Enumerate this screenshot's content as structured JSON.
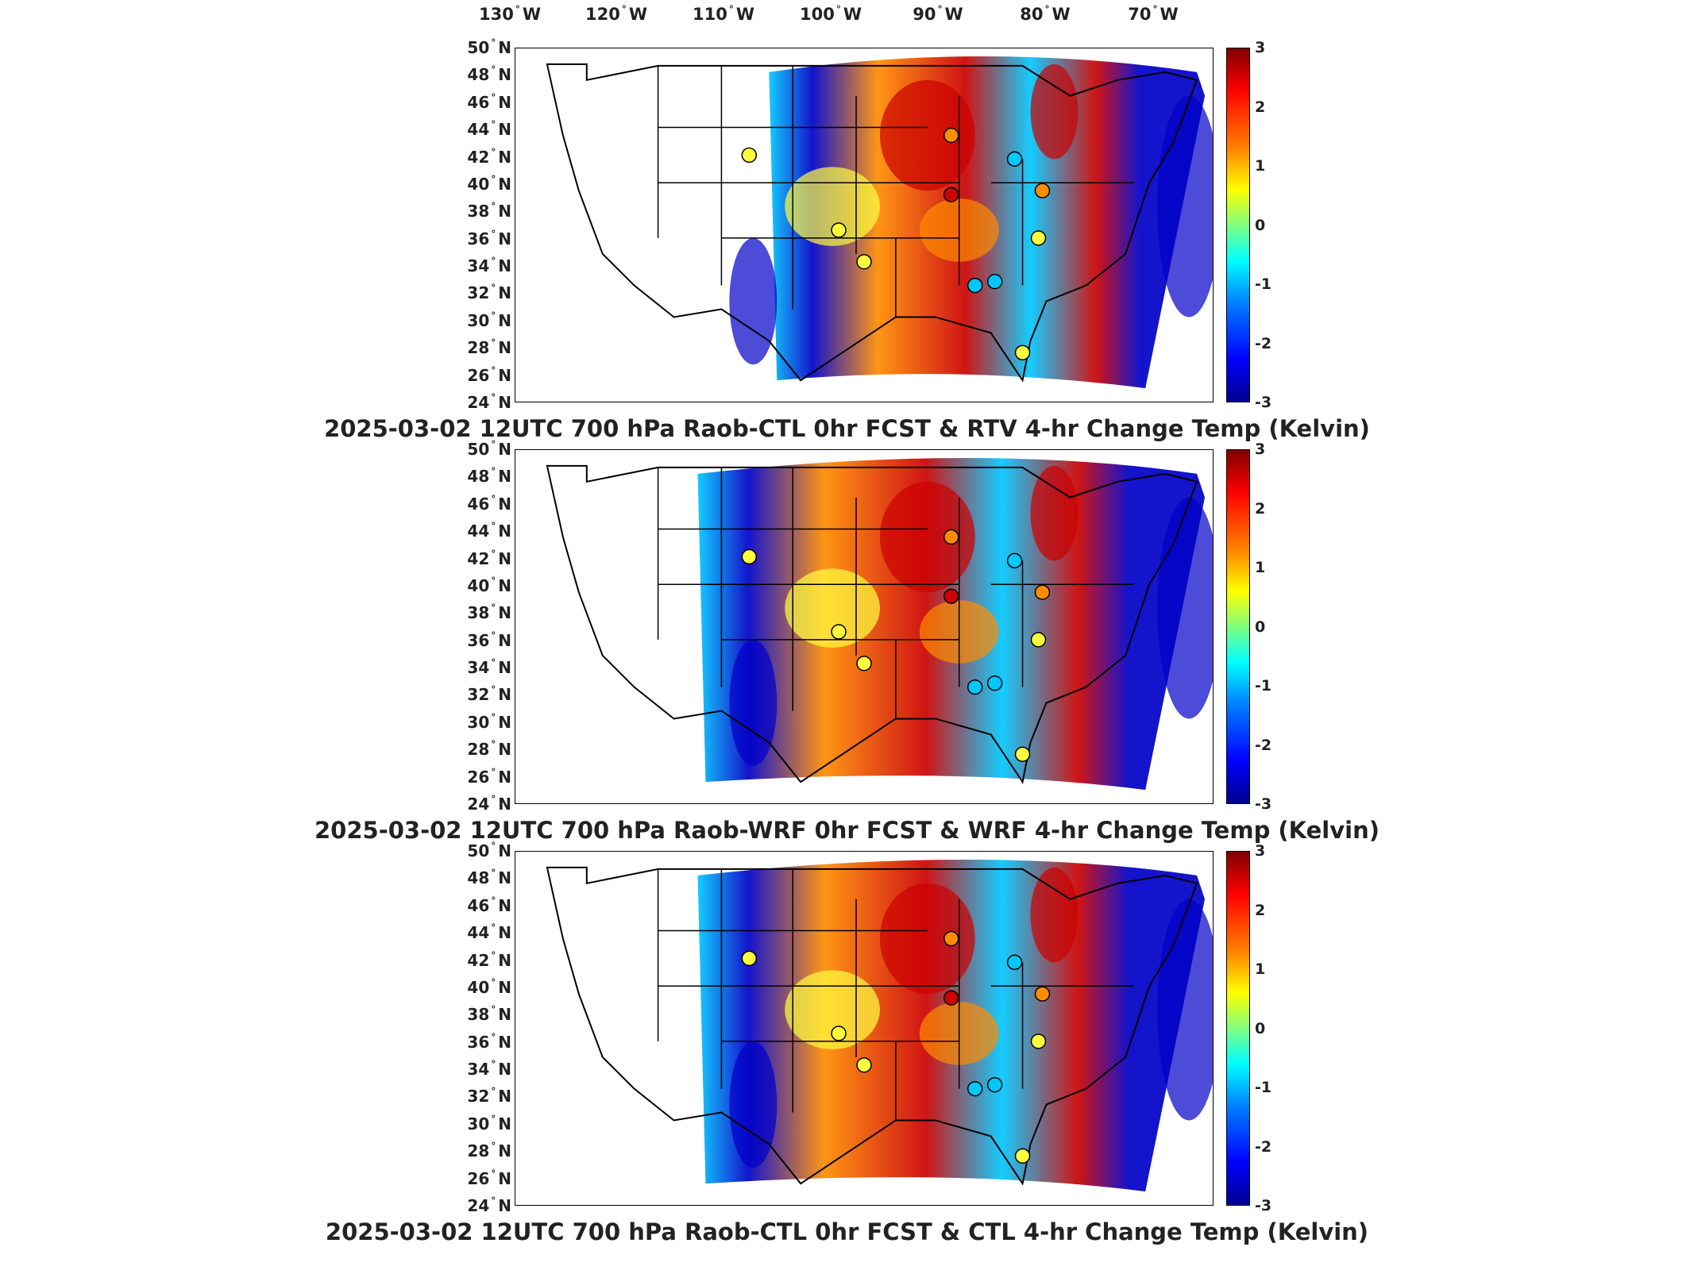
{
  "longitude_labels": [
    {
      "deg": "130",
      "hem": "W"
    },
    {
      "deg": "120",
      "hem": "W"
    },
    {
      "deg": "110",
      "hem": "W"
    },
    {
      "deg": "100",
      "hem": "W"
    },
    {
      "deg": "90",
      "hem": "W"
    },
    {
      "deg": "80",
      "hem": "W"
    },
    {
      "deg": "70",
      "hem": "W"
    }
  ],
  "latitude_labels": [
    {
      "deg": "50",
      "hem": "N"
    },
    {
      "deg": "48",
      "hem": "N"
    },
    {
      "deg": "46",
      "hem": "N"
    },
    {
      "deg": "44",
      "hem": "N"
    },
    {
      "deg": "42",
      "hem": "N"
    },
    {
      "deg": "40",
      "hem": "N"
    },
    {
      "deg": "38",
      "hem": "N"
    },
    {
      "deg": "36",
      "hem": "N"
    },
    {
      "deg": "34",
      "hem": "N"
    },
    {
      "deg": "32",
      "hem": "N"
    },
    {
      "deg": "30",
      "hem": "N"
    },
    {
      "deg": "28",
      "hem": "N"
    },
    {
      "deg": "26",
      "hem": "N"
    },
    {
      "deg": "24",
      "hem": "N"
    }
  ],
  "colorbar": {
    "ticks": [
      "3",
      "2",
      "1",
      "0",
      "-1",
      "-2",
      "-3"
    ],
    "range": [
      -3,
      3
    ],
    "colormap": "jet"
  },
  "panels": [
    {
      "title": "2025-03-02 12UTC 700 hPa Raob-CTL 0hr FCST & RTV 4-hr Change Temp (Kelvin)"
    },
    {
      "title": "2025-03-02 12UTC 700 hPa Raob-WRF 0hr FCST & WRF 4-hr Change Temp (Kelvin)"
    },
    {
      "title": "2025-03-02 12UTC 700 hPa Raob-CTL 0hr FCST & CTL 4-hr Change Temp (Kelvin)"
    }
  ],
  "colors": {
    "hot": "#cc0000",
    "warm": "#ff8c00",
    "neutral": "#ffff40",
    "cool": "#00c8ff",
    "cold": "#0000c8"
  }
}
